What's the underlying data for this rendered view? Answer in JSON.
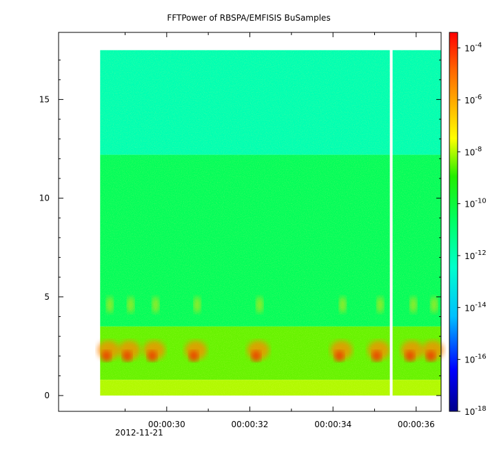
{
  "chart_data": {
    "type": "heatmap",
    "title": "FFTPower of RBSPA/EMFISIS  BuSamples",
    "xlabel": "",
    "ylabel": "",
    "x_ticks": [
      "00:00:30",
      "00:00:32",
      "00:00:34",
      "00:00:36"
    ],
    "x_date_label": "2012-11-21",
    "x_range_seconds": [
      27.4,
      36.6
    ],
    "data_x_range_seconds": [
      28.4,
      36.6
    ],
    "gap_x_seconds": 35.4,
    "y_ticks": [
      0,
      5,
      10,
      15
    ],
    "ylim": [
      -0.8,
      18.4
    ],
    "data_y_range": [
      0,
      17.5
    ],
    "colorbar": {
      "scale": "log",
      "range_exponents": [
        -18,
        -3.4
      ],
      "tick_exponents": [
        -18,
        -16,
        -14,
        -12,
        -10,
        -8,
        -6,
        -4
      ],
      "tick_base": "10",
      "colors": [
        "#00008b",
        "#0000ff",
        "#00bfff",
        "#00ffcc",
        "#00ff66",
        "#22ee00",
        "#ffff00",
        "#ffbb00",
        "#ff6600",
        "#ff0000"
      ]
    },
    "bands": [
      {
        "y_from": 12.2,
        "y_to": 17.5,
        "level_exponent": -12
      },
      {
        "y_from": 3.5,
        "y_to": 12.2,
        "level_exponent": -10.5
      },
      {
        "y_from": 0.8,
        "y_to": 3.5,
        "level_exponent": -8.5
      },
      {
        "y_from": 0,
        "y_to": 0.8,
        "level_exponent": -8
      }
    ],
    "bursts_seconds": [
      28.6,
      29.1,
      29.7,
      30.7,
      32.2,
      34.2,
      35.1,
      35.9,
      36.4
    ]
  }
}
